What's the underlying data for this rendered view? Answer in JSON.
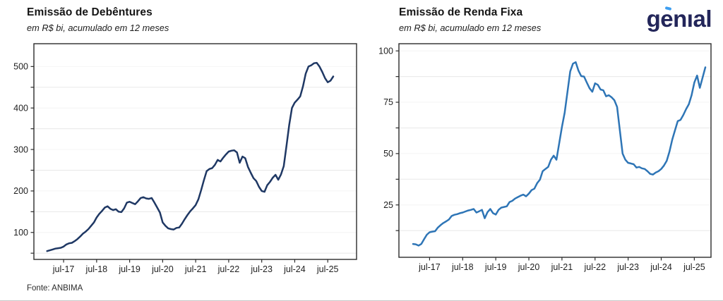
{
  "page": {
    "background": "#ffffff"
  },
  "header": {
    "logo_text": "genıal",
    "logo_color": "#23265A",
    "logo_accent_color": "#3D9EF0"
  },
  "footer": {
    "source": "Fonte: ANBIMA"
  },
  "chart_data": [
    {
      "type": "line",
      "title": "Emissão de Debêntures",
      "subtitle": "em R$ bi, acumulado em 12 meses",
      "x_tick_labels": [
        "jul-17",
        "jul-18",
        "jul-19",
        "jul-20",
        "jul-21",
        "jul-22",
        "jul-23",
        "jul-24",
        "jul-25"
      ],
      "y_ticks": [
        100,
        200,
        300,
        400,
        500
      ],
      "y_minor_ticks": [
        50,
        150,
        250,
        350,
        450
      ],
      "ylim": [
        35,
        555
      ],
      "grid": "horizontal",
      "legend_position": "none",
      "first_tick_point_index": 6,
      "points_between_ticks": 12,
      "series": [
        {
          "name": "Debêntures (R$ bi, acumulado 12m, jan-17 a set-25)",
          "color": "#1F3864",
          "values": [
            55,
            57,
            59,
            61,
            62,
            63,
            66,
            71,
            74,
            75,
            79,
            84,
            90,
            97,
            102,
            108,
            116,
            124,
            136,
            145,
            152,
            160,
            163,
            157,
            154,
            156,
            150,
            149,
            158,
            172,
            174,
            171,
            168,
            175,
            183,
            185,
            182,
            181,
            183,
            172,
            160,
            148,
            124,
            116,
            110,
            108,
            107,
            111,
            112,
            121,
            132,
            142,
            151,
            158,
            166,
            180,
            202,
            226,
            248,
            253,
            255,
            263,
            275,
            271,
            280,
            288,
            295,
            297,
            298,
            293,
            268,
            283,
            279,
            258,
            244,
            231,
            224,
            210,
            200,
            198,
            214,
            222,
            232,
            239,
            227,
            240,
            260,
            308,
            359,
            400,
            413,
            420,
            428,
            452,
            483,
            500,
            503,
            508,
            509,
            500,
            487,
            472,
            462,
            466,
            476
          ]
        }
      ]
    },
    {
      "type": "line",
      "title": "Emissão de Renda Fixa",
      "subtitle": "em R$ bi, acumulado em 12 meses",
      "x_tick_labels": [
        "jul-17",
        "jul-18",
        "jul-19",
        "jul-20",
        "jul-21",
        "jul-22",
        "jul-23",
        "jul-24",
        "jul-25"
      ],
      "y_ticks": [
        25,
        50,
        75,
        100
      ],
      "y_minor_ticks": [
        12.5,
        37.5,
        62.5,
        87.5
      ],
      "ylim": [
        -0.5,
        103.5
      ],
      "grid": "horizontal",
      "legend_position": "none",
      "first_tick_point_index": 6,
      "points_between_ticks": 12,
      "series": [
        {
          "name": "Renda Fixa (R$ bi, acumulado 12m, jan-17 em diante)",
          "color": "#2E75B6",
          "values": [
            6.0,
            5.8,
            5.2,
            6.0,
            8.3,
            10.5,
            11.7,
            12.0,
            12.2,
            14.0,
            15.2,
            16.2,
            17.0,
            17.9,
            19.6,
            20.2,
            20.5,
            21.0,
            21.3,
            21.8,
            22.3,
            22.6,
            23.0,
            21.3,
            21.9,
            22.6,
            18.5,
            21.5,
            23.0,
            21.0,
            20.3,
            22.6,
            23.7,
            24.0,
            24.3,
            26.4,
            27.0,
            28.1,
            28.8,
            29.5,
            30.0,
            29.2,
            30.5,
            32.2,
            32.9,
            35.6,
            37.3,
            41.4,
            42.5,
            43.5,
            47.0,
            49.0,
            47.0,
            55.0,
            63.0,
            70.0,
            80.0,
            90.0,
            93.8,
            94.5,
            90.4,
            87.7,
            87.5,
            84.6,
            81.8,
            80.1,
            84.2,
            83.5,
            81.2,
            80.8,
            77.9,
            78.4,
            77.4,
            76.0,
            72.7,
            61.3,
            50.0,
            47.0,
            45.5,
            45.2,
            44.8,
            43.2,
            43.5,
            42.8,
            42.5,
            41.4,
            40.1,
            39.8,
            40.8,
            41.4,
            42.5,
            44.2,
            46.5,
            51.0,
            56.8,
            61.3,
            65.8,
            66.4,
            68.8,
            71.6,
            74.0,
            78.4,
            84.6,
            88.0,
            82.0,
            87.0,
            92.0
          ]
        }
      ]
    }
  ]
}
